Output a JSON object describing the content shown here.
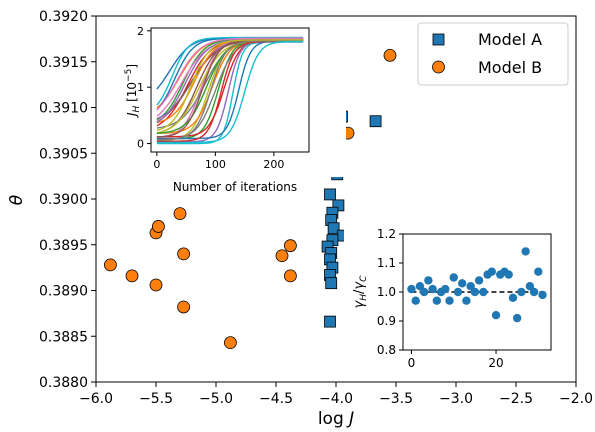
{
  "chart_data": [
    {
      "type": "scatter",
      "xlabel": "log J",
      "ylabel": "θ",
      "xlim": [
        -6.0,
        -2.0
      ],
      "ylim": [
        0.388,
        0.392
      ],
      "xticks": [
        "−6.0",
        "−5.5",
        "−5.0",
        "−4.5",
        "−4.0",
        "−3.5",
        "−3.0",
        "−2.5",
        "−2.0"
      ],
      "yticks": [
        "0.3880",
        "0.3885",
        "0.3890",
        "0.3895",
        "0.3900",
        "0.3905",
        "0.3910",
        "0.3915",
        "0.3920"
      ],
      "legend_position": "top-right",
      "grid": false,
      "series": [
        {
          "name": "Model A",
          "marker": "square",
          "color": "#1f77b4",
          "points": [
            [
              -3.95,
              0.3909
            ],
            [
              -3.67,
              0.39085
            ],
            [
              -3.99,
              0.39027
            ],
            [
              -4.05,
              0.39005
            ],
            [
              -3.98,
              0.38993
            ],
            [
              -4.03,
              0.38985
            ],
            [
              -4.04,
              0.38977
            ],
            [
              -4.02,
              0.38968
            ],
            [
              -3.94,
              0.3896
            ],
            [
              -4.03,
              0.38955
            ],
            [
              -4.07,
              0.38948
            ],
            [
              -4.04,
              0.38941
            ],
            [
              -4.05,
              0.38934
            ],
            [
              -4.03,
              0.38925
            ],
            [
              -4.05,
              0.38917
            ],
            [
              -4.04,
              0.38908
            ],
            [
              -4.05,
              0.38866
            ]
          ]
        },
        {
          "name": "Model B",
          "marker": "circle",
          "color": "#ff7f0e",
          "points": [
            [
              -3.55,
              0.39157
            ],
            [
              -3.9,
              0.39072
            ],
            [
              -5.88,
              0.38928
            ],
            [
              -5.7,
              0.38916
            ],
            [
              -5.5,
              0.38963
            ],
            [
              -5.48,
              0.3897
            ],
            [
              -5.3,
              0.38984
            ],
            [
              -5.5,
              0.38906
            ],
            [
              -5.27,
              0.3894
            ],
            [
              -5.27,
              0.38882
            ],
            [
              -4.88,
              0.38843
            ],
            [
              -4.45,
              0.38938
            ],
            [
              -4.38,
              0.38949
            ],
            [
              -4.38,
              0.38916
            ]
          ]
        }
      ]
    },
    {
      "type": "line",
      "ylabel": "J_H [10^-5]",
      "xlabel": "Number of iterations",
      "xlim": [
        -10,
        260
      ],
      "ylim": [
        -0.15,
        2.05
      ],
      "xticks": [
        "0",
        "100",
        "200"
      ],
      "yticks": [
        "0",
        "1",
        "2"
      ],
      "series_colors": [
        "#1f77b4",
        "#ff7f0e",
        "#2ca02c",
        "#d62728",
        "#9467bd",
        "#8c564b",
        "#e377c2",
        "#7f7f7f",
        "#bcbd22",
        "#17becf",
        "#1f77b4",
        "#ff7f0e",
        "#2ca02c",
        "#d62728",
        "#9467bd",
        "#8c564b",
        "#e377c2",
        "#7f7f7f",
        "#bcbd22",
        "#17becf",
        "#1f77b4",
        "#ff7f0e",
        "#2ca02c",
        "#d62728",
        "#9467bd",
        "#8c564b",
        "#e377c2",
        "#7f7f7f",
        "#bcbd22",
        "#17becf"
      ],
      "curve_params": [
        [
          0.7,
          1.88,
          22,
          18
        ],
        [
          0.45,
          1.87,
          38,
          20
        ],
        [
          0.3,
          1.86,
          45,
          18
        ],
        [
          0.2,
          1.85,
          52,
          20
        ],
        [
          0.35,
          1.86,
          60,
          22
        ],
        [
          0.15,
          1.84,
          68,
          18
        ],
        [
          0.1,
          1.83,
          75,
          15
        ],
        [
          0.25,
          1.85,
          82,
          20
        ],
        [
          0.05,
          1.82,
          88,
          14
        ],
        [
          0.0,
          1.8,
          130,
          8
        ],
        [
          0.4,
          1.87,
          30,
          16
        ],
        [
          0.18,
          1.84,
          95,
          15
        ],
        [
          0.08,
          1.83,
          105,
          12
        ],
        [
          0.12,
          1.84,
          115,
          13
        ],
        [
          0.03,
          1.82,
          122,
          10
        ],
        [
          0.22,
          1.85,
          55,
          25
        ],
        [
          0.28,
          1.86,
          42,
          22
        ],
        [
          0.06,
          1.82,
          100,
          16
        ],
        [
          0.14,
          1.83,
          72,
          20
        ],
        [
          0.5,
          1.88,
          26,
          14
        ],
        [
          0.09,
          1.82,
          140,
          10
        ],
        [
          0.33,
          1.86,
          64,
          18
        ],
        [
          0.17,
          1.84,
          85,
          17
        ],
        [
          0.04,
          1.81,
          110,
          11
        ],
        [
          0.26,
          1.85,
          48,
          19
        ],
        [
          0.11,
          1.83,
          78,
          14
        ],
        [
          0.38,
          1.87,
          35,
          20
        ],
        [
          0.07,
          1.82,
          92,
          13
        ],
        [
          0.19,
          1.84,
          58,
          16
        ],
        [
          0.02,
          1.81,
          150,
          12
        ]
      ]
    },
    {
      "type": "scatter",
      "ylabel": "γ_H/γ_C",
      "xlim": [
        -2,
        33
      ],
      "ylim": [
        0.8,
        1.2
      ],
      "xticks": [
        "0",
        "20"
      ],
      "yticks": [
        "0.8",
        "0.9",
        "1.0",
        "1.1",
        "1.2"
      ],
      "reference_line": 1.0,
      "marker": "circle",
      "color": "#1f77b4",
      "points": [
        [
          0,
          1.01
        ],
        [
          1,
          0.97
        ],
        [
          2,
          1.02
        ],
        [
          3,
          1.0
        ],
        [
          4,
          1.04
        ],
        [
          5,
          1.01
        ],
        [
          6,
          0.97
        ],
        [
          7,
          1.0
        ],
        [
          8,
          1.01
        ],
        [
          9,
          0.97
        ],
        [
          10,
          1.05
        ],
        [
          11,
          1.0
        ],
        [
          12,
          1.03
        ],
        [
          13,
          0.97
        ],
        [
          14,
          1.02
        ],
        [
          15,
          1.0
        ],
        [
          16,
          1.04
        ],
        [
          17,
          1.0
        ],
        [
          18,
          1.06
        ],
        [
          19,
          1.07
        ],
        [
          20,
          0.92
        ],
        [
          21,
          1.06
        ],
        [
          22,
          1.07
        ],
        [
          23,
          1.06
        ],
        [
          24,
          0.98
        ],
        [
          25,
          0.91
        ],
        [
          26,
          1.0
        ],
        [
          27,
          1.14
        ],
        [
          28,
          1.02
        ],
        [
          29,
          1.0
        ],
        [
          30,
          1.07
        ],
        [
          31,
          0.99
        ]
      ]
    }
  ]
}
